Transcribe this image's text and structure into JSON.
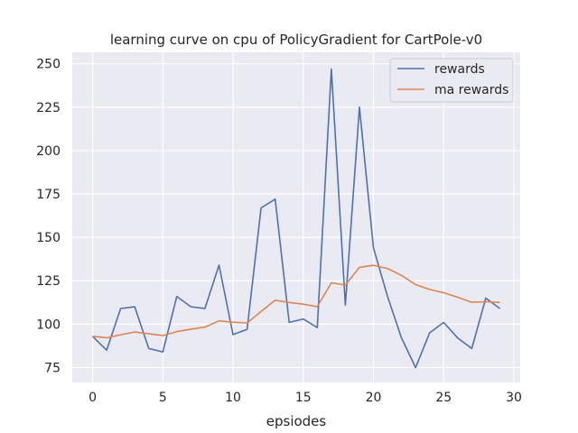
{
  "chart_data": {
    "type": "line",
    "title": "learning curve on cpu of PolicyGradient for CartPole-v0",
    "xlabel": "epsiodes",
    "ylabel": "",
    "xlim": [
      -1.45,
      30.45
    ],
    "ylim": [
      66.4,
      256.6
    ],
    "xticks": [
      0,
      5,
      10,
      15,
      20,
      25,
      30
    ],
    "yticks": [
      75,
      100,
      125,
      150,
      175,
      200,
      225,
      250
    ],
    "grid": true,
    "legend_position": "upper right",
    "x": [
      0,
      1,
      2,
      3,
      4,
      5,
      6,
      7,
      8,
      9,
      10,
      11,
      12,
      13,
      14,
      15,
      16,
      17,
      18,
      19,
      20,
      21,
      22,
      23,
      24,
      25,
      26,
      27,
      28,
      29
    ],
    "series": [
      {
        "name": "rewards",
        "color": "#4c72b0",
        "values": [
          93,
          85,
          109,
          110,
          86,
          84,
          116,
          110,
          109,
          134,
          94,
          97,
          167,
          172,
          101,
          103,
          98,
          247,
          111,
          225,
          144,
          116,
          92,
          75,
          95,
          101,
          92,
          86,
          115,
          109
        ]
      },
      {
        "name": "ma rewards",
        "color": "#dd8452",
        "values": [
          93,
          92.2,
          93.9,
          95.5,
          94.5,
          93.4,
          95.7,
          97.1,
          98.3,
          101.9,
          101.1,
          100.7,
          107.3,
          113.8,
          112.5,
          111.5,
          110.1,
          123.8,
          122.5,
          132.7,
          133.9,
          132.1,
          128.1,
          122.8,
          120.0,
          118.1,
          115.5,
          112.6,
          112.9,
          112.5
        ]
      }
    ]
  }
}
